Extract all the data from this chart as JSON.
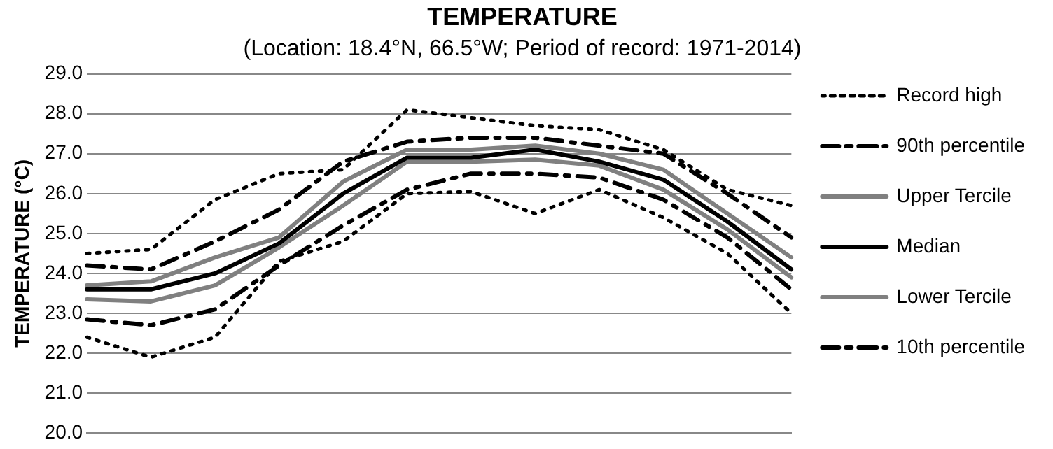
{
  "chart_data": {
    "type": "line",
    "title": "TEMPERATURE",
    "subtitle": "(Location: 18.4°N, 66.5°W; Period of record: 1971-2014)",
    "ylabel": "TEMPERATURE (°C)",
    "categories": [
      null,
      null,
      null,
      null,
      null,
      null,
      null,
      null,
      null,
      null,
      null,
      null
    ],
    "ylim": [
      20,
      29
    ],
    "yticks": [
      {
        "value": 20,
        "label": "20.0"
      },
      {
        "value": 21,
        "label": "21.0"
      },
      {
        "value": 22,
        "label": "22.0"
      },
      {
        "value": 23,
        "label": "23.0"
      },
      {
        "value": 24,
        "label": "24.0"
      },
      {
        "value": 25,
        "label": "25.0"
      },
      {
        "value": 26,
        "label": "26.0"
      },
      {
        "value": 27,
        "label": "27.0"
      },
      {
        "value": 28,
        "label": "28.0"
      },
      {
        "value": 29,
        "label": "29.0"
      }
    ],
    "grid": "y",
    "legend": "right",
    "tick_labels": "y",
    "marker": "none",
    "series": [
      {
        "name": "Record high",
        "color": "#000000",
        "line_style": "dotted",
        "values": [
          24.5,
          24.6,
          25.85,
          26.5,
          26.6,
          28.1,
          27.9,
          27.7,
          27.6,
          27.1,
          26.1,
          25.7
        ]
      },
      {
        "name": "90th percentile",
        "color": "#000000",
        "line_style": "dashed",
        "values": [
          24.2,
          24.1,
          24.8,
          25.6,
          26.8,
          27.3,
          27.4,
          27.4,
          27.2,
          27.0,
          26.0,
          24.9
        ]
      },
      {
        "name": "Upper Tercile",
        "color": "#808080",
        "line_style": "solid",
        "values": [
          23.7,
          23.8,
          24.4,
          24.9,
          26.3,
          27.1,
          27.1,
          27.2,
          27.0,
          26.6,
          25.5,
          24.4
        ]
      },
      {
        "name": "Median",
        "color": "#000000",
        "line_style": "solid",
        "values": [
          23.6,
          23.6,
          24.0,
          24.75,
          26.0,
          26.9,
          26.9,
          27.1,
          26.8,
          26.35,
          25.3,
          24.1
        ]
      },
      {
        "name": "Lower Tercile",
        "color": "#808080",
        "line_style": "solid",
        "values": [
          23.35,
          23.3,
          23.7,
          24.65,
          25.7,
          26.8,
          26.8,
          26.85,
          26.7,
          26.1,
          25.1,
          23.9
        ]
      },
      {
        "name": "10th percentile",
        "color": "#000000",
        "line_style": "dashed",
        "values": [
          22.85,
          22.7,
          23.1,
          24.2,
          25.2,
          26.1,
          26.5,
          26.5,
          26.4,
          25.85,
          24.9,
          23.6
        ]
      },
      {
        "color": "#000000",
        "line_style": "dotted",
        "values": [
          22.4,
          21.9,
          22.4,
          24.3,
          24.8,
          26.0,
          26.05,
          25.5,
          26.1,
          25.4,
          24.5,
          23.0
        ]
      }
    ]
  }
}
